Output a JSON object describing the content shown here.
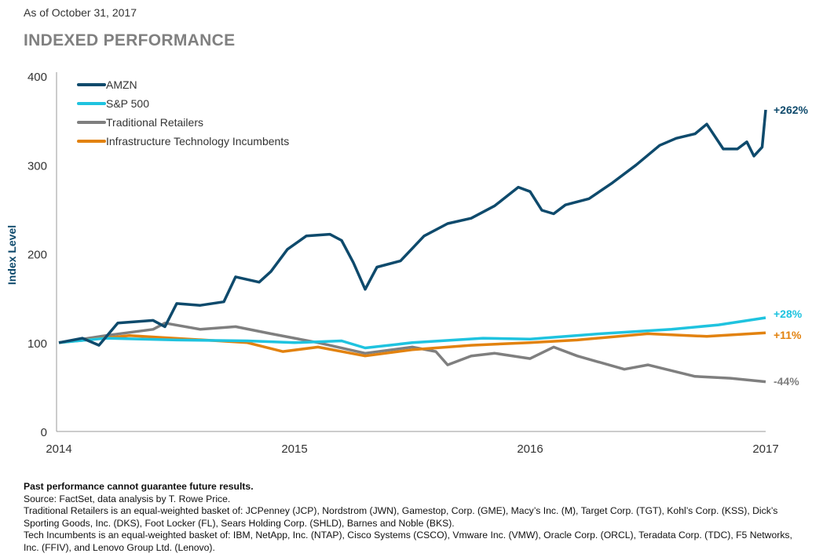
{
  "header": {
    "as_of": "As of October 31, 2017",
    "title": "INDEXED PERFORMANCE"
  },
  "chart_data": {
    "type": "line",
    "title": "INDEXED PERFORMANCE",
    "xlabel": "",
    "ylabel": "Index Level",
    "xlim": [
      2014,
      2017
    ],
    "ylim": [
      0,
      400
    ],
    "x_ticks": [
      "2014",
      "2015",
      "2016",
      "2017"
    ],
    "y_ticks": [
      "0",
      "100",
      "200",
      "300",
      "400"
    ],
    "grid": false,
    "legend_position": "top-left",
    "series": [
      {
        "name": "AMZN",
        "color": "#0e4a6c",
        "end_label": "+262%",
        "x": [
          2014.0,
          2014.1,
          2014.17,
          2014.25,
          2014.4,
          2014.45,
          2014.5,
          2014.6,
          2014.7,
          2014.75,
          2014.85,
          2014.9,
          2014.97,
          2015.05,
          2015.15,
          2015.2,
          2015.25,
          2015.3,
          2015.35,
          2015.45,
          2015.55,
          2015.65,
          2015.75,
          2015.85,
          2015.95,
          2016.0,
          2016.05,
          2016.1,
          2016.15,
          2016.25,
          2016.35,
          2016.45,
          2016.55,
          2016.62,
          2016.7,
          2016.75,
          2016.82,
          2016.88,
          2016.92,
          2016.95,
          2016.985,
          2017.0
        ],
        "values": [
          100,
          105,
          97,
          122,
          125,
          118,
          144,
          142,
          146,
          174,
          168,
          180,
          205,
          220,
          222,
          215,
          190,
          160,
          185,
          192,
          220,
          234,
          240,
          254,
          275,
          270,
          249,
          245,
          255,
          262,
          280,
          300,
          322,
          330,
          335,
          346,
          318,
          318,
          326,
          310,
          320,
          362
        ]
      },
      {
        "name": "S&P 500",
        "color": "#1fc3df",
        "end_label": "+28%",
        "x": [
          2014.0,
          2014.2,
          2014.5,
          2014.8,
          2015.0,
          2015.2,
          2015.3,
          2015.5,
          2015.8,
          2016.0,
          2016.3,
          2016.6,
          2016.8,
          2017.0
        ],
        "values": [
          100,
          105,
          103,
          102,
          100,
          102,
          94,
          100,
          105,
          104,
          110,
          115,
          120,
          128
        ]
      },
      {
        "name": "Traditional Retailers",
        "color": "#7f7f7f",
        "end_label": "-44%",
        "x": [
          2014.0,
          2014.2,
          2014.4,
          2014.45,
          2014.6,
          2014.75,
          2014.9,
          2015.1,
          2015.3,
          2015.5,
          2015.6,
          2015.65,
          2015.75,
          2015.85,
          2016.0,
          2016.1,
          2016.2,
          2016.4,
          2016.5,
          2016.7,
          2016.85,
          2017.0
        ],
        "values": [
          100,
          108,
          115,
          122,
          115,
          118,
          110,
          100,
          88,
          95,
          90,
          75,
          85,
          88,
          82,
          95,
          85,
          70,
          75,
          62,
          60,
          56
        ]
      },
      {
        "name": "Infrastructure Technology Incumbents",
        "color": "#e2820f",
        "end_label": "+11%",
        "x": [
          2014.0,
          2014.3,
          2014.55,
          2014.8,
          2014.95,
          2015.1,
          2015.3,
          2015.5,
          2015.75,
          2016.0,
          2016.2,
          2016.5,
          2016.75,
          2017.0
        ],
        "values": [
          100,
          108,
          104,
          100,
          90,
          95,
          85,
          92,
          97,
          100,
          103,
          110,
          107,
          111
        ]
      }
    ]
  },
  "footer": {
    "disclaimer": "Past performance cannot guarantee future results.",
    "source": "Source: FactSet, data analysis by T. Rowe Price.",
    "note_retailers": "Traditional Retailers is an equal-weighted basket of: JCPenney (JCP), Nordstrom (JWN), Gamestop, Corp. (GME), Macy’s Inc. (M), Target Corp. (TGT), Kohl’s Corp. (KSS), Dick’s Sporting Goods, Inc. (DKS), Foot Locker (FL), Sears Holding Corp. (SHLD), Barnes and Noble (BKS).",
    "note_tech": "Tech Incumbents is an equal-weighted basket of: IBM, NetApp, Inc. (NTAP), Cisco Systems (CSCO), Vmware Inc. (VMW), Oracle Corp. (ORCL), Teradata Corp. (TDC), F5 Networks, Inc. (FFIV), and Lenovo Group Ltd. (Lenovo)."
  }
}
